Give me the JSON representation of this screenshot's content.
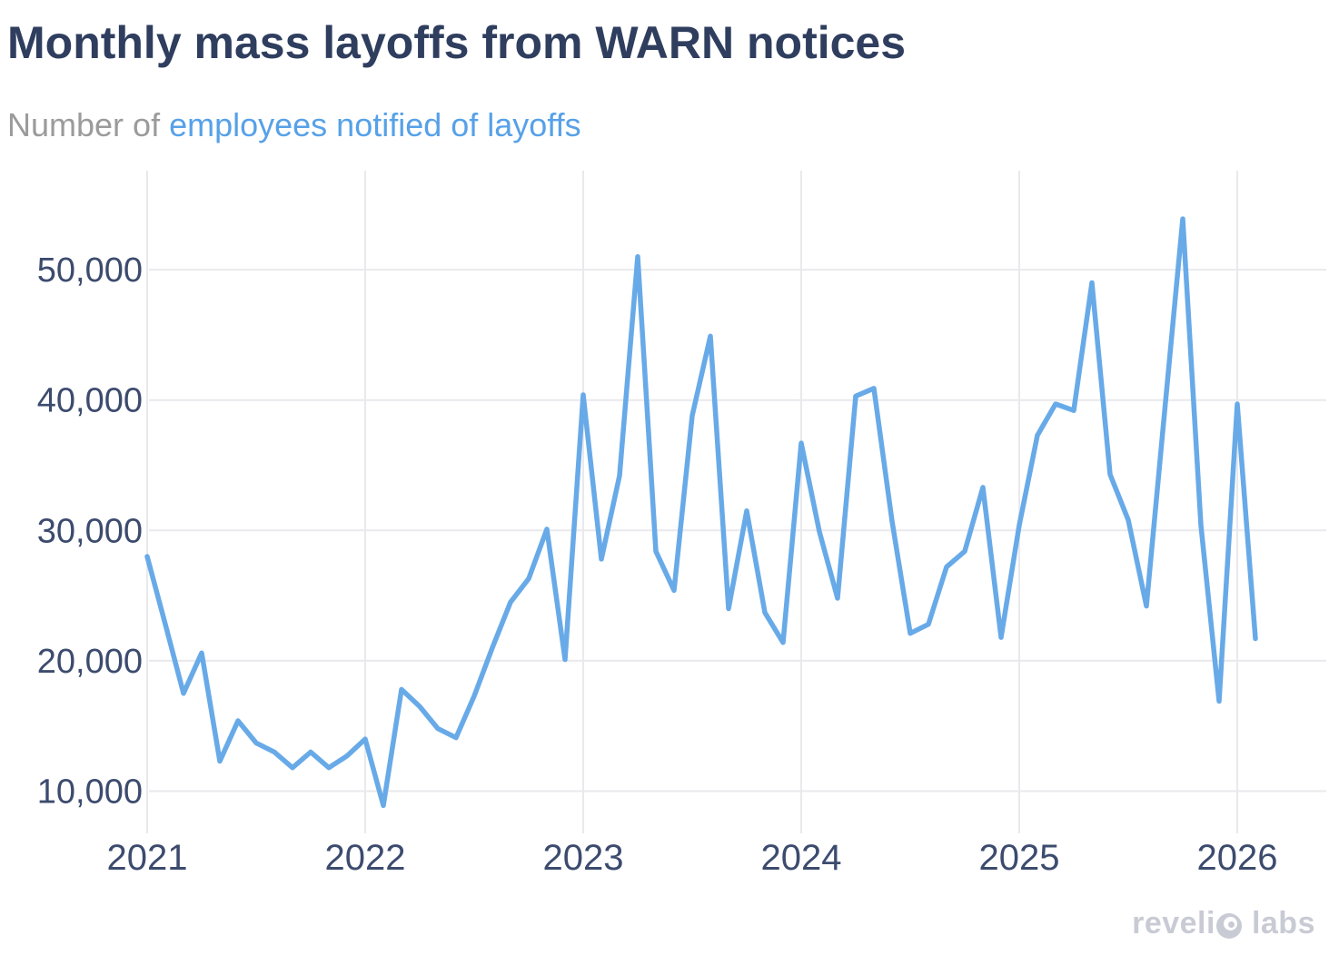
{
  "header": {
    "title": "Monthly mass layoffs from WARN notices",
    "subtitle_prefix": "Number of ",
    "subtitle_highlight": "employees notified of layoffs"
  },
  "logo": {
    "part1": "reveli",
    "o_icon": "revelio-o-mark",
    "part2": "labs"
  },
  "colors": {
    "title": "#2f3e5e",
    "axis_label": "#3c4b6e",
    "subtitle_gray": "#9b9b9b",
    "subtitle_blue": "#57a1e8",
    "line": "#68aae8",
    "grid": "#e9e9ed",
    "logo_gray": "#c8cbd4",
    "background": "#ffffff"
  },
  "chart_data": {
    "type": "line",
    "title": "Monthly mass layoffs from WARN notices",
    "ylabel": "Number of employees notified of layoffs",
    "grid": "on",
    "legend": "none",
    "x_tick_labels": [
      "2021",
      "2022",
      "2023",
      "2024",
      "2025",
      "2026"
    ],
    "y_ticks": [
      10000,
      20000,
      30000,
      40000,
      50000
    ],
    "y_tick_labels": [
      "10,000",
      "20,000",
      "30,000",
      "40,000",
      "50,000"
    ],
    "ylim": [
      8000,
      56000
    ],
    "x": [
      "2021-01",
      "2021-02",
      "2021-03",
      "2021-04",
      "2021-05",
      "2021-06",
      "2021-07",
      "2021-08",
      "2021-09",
      "2021-10",
      "2021-11",
      "2021-12",
      "2022-01",
      "2022-02",
      "2022-03",
      "2022-04",
      "2022-05",
      "2022-06",
      "2022-07",
      "2022-08",
      "2022-09",
      "2022-10",
      "2022-11",
      "2022-12",
      "2023-01",
      "2023-02",
      "2023-03",
      "2023-04",
      "2023-05",
      "2023-06",
      "2023-07",
      "2023-08",
      "2023-09",
      "2023-10",
      "2023-11",
      "2023-12",
      "2024-01",
      "2024-02",
      "2024-03",
      "2024-04",
      "2024-05",
      "2024-06",
      "2024-07",
      "2024-08",
      "2024-09",
      "2024-10",
      "2024-11",
      "2024-12",
      "2025-01",
      "2025-02",
      "2025-03",
      "2025-04",
      "2025-05",
      "2025-06",
      "2025-07",
      "2025-08",
      "2025-09",
      "2025-10",
      "2025-11",
      "2025-12",
      "2026-01",
      "2026-02"
    ],
    "values": [
      28000,
      22800,
      17500,
      20600,
      12300,
      15400,
      13700,
      13000,
      11800,
      13000,
      11800,
      12700,
      14000,
      8900,
      17800,
      16500,
      14800,
      14100,
      17300,
      21000,
      24500,
      26300,
      30100,
      20100,
      40400,
      27800,
      34200,
      51000,
      28400,
      25400,
      38800,
      44900,
      24000,
      31500,
      23700,
      21400,
      36700,
      29900,
      24800,
      40300,
      40900,
      30700,
      22100,
      22800,
      27200,
      28400,
      33300,
      21800,
      30400,
      37300,
      39700,
      39200,
      49000,
      34300,
      30800,
      24200,
      39100,
      53900,
      30400,
      16900,
      39700,
      21700
    ]
  }
}
